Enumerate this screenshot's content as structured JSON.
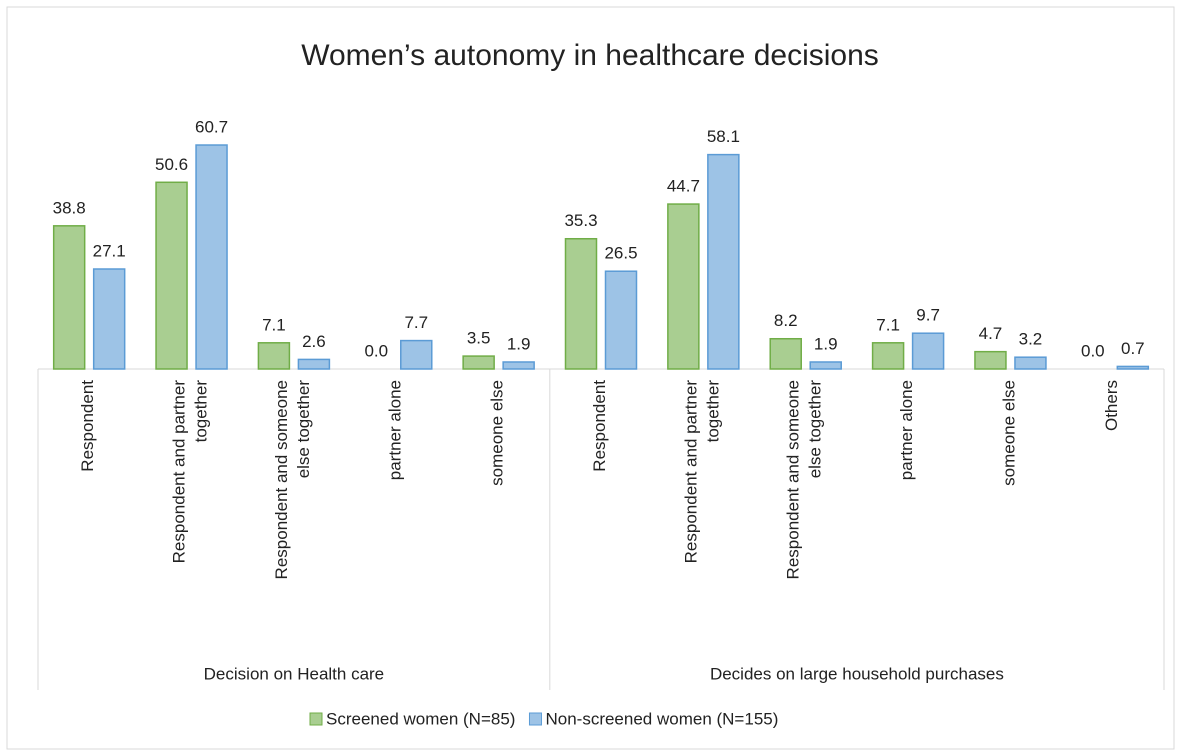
{
  "chart_data": {
    "type": "bar",
    "title": "Women’s autonomy in healthcare decisions",
    "groups": [
      {
        "name": "Decision on Health care",
        "categories": [
          "Respondent",
          "Respondent and partner together",
          "Respondent and someone else together",
          "partner alone",
          "someone else"
        ]
      },
      {
        "name": "Decides on large household purchases",
        "categories": [
          "Respondent",
          "Respondent and partner together",
          "Respondent and someone else together",
          "partner alone",
          "someone else",
          "Others"
        ]
      }
    ],
    "series": [
      {
        "name": "Screened women (N=85)",
        "color": "#70ad47",
        "values": [
          38.8,
          50.6,
          7.1,
          0,
          3.5,
          35.3,
          44.7,
          8.2,
          7.1,
          4.7,
          0
        ],
        "value_labels": [
          "38.8",
          "50.6",
          "7.1",
          "0.0",
          "3.5",
          "35.3",
          "44.7",
          "8.2",
          "7.1",
          "4.7",
          "0.0"
        ]
      },
      {
        "name": "Non-screened women (N=155)",
        "color": "#5b9bd5",
        "values": [
          27.1,
          60.7,
          2.6,
          7.7,
          1.9,
          26.5,
          58.1,
          1.9,
          9.7,
          3.2,
          0.7
        ],
        "value_labels": [
          "27.1",
          "60.7",
          "2.6",
          "7.7",
          "1.9",
          "26.5",
          "58.1",
          "1.9",
          "9.7",
          "3.2",
          "0.7"
        ]
      }
    ],
    "legend": "bottom"
  }
}
